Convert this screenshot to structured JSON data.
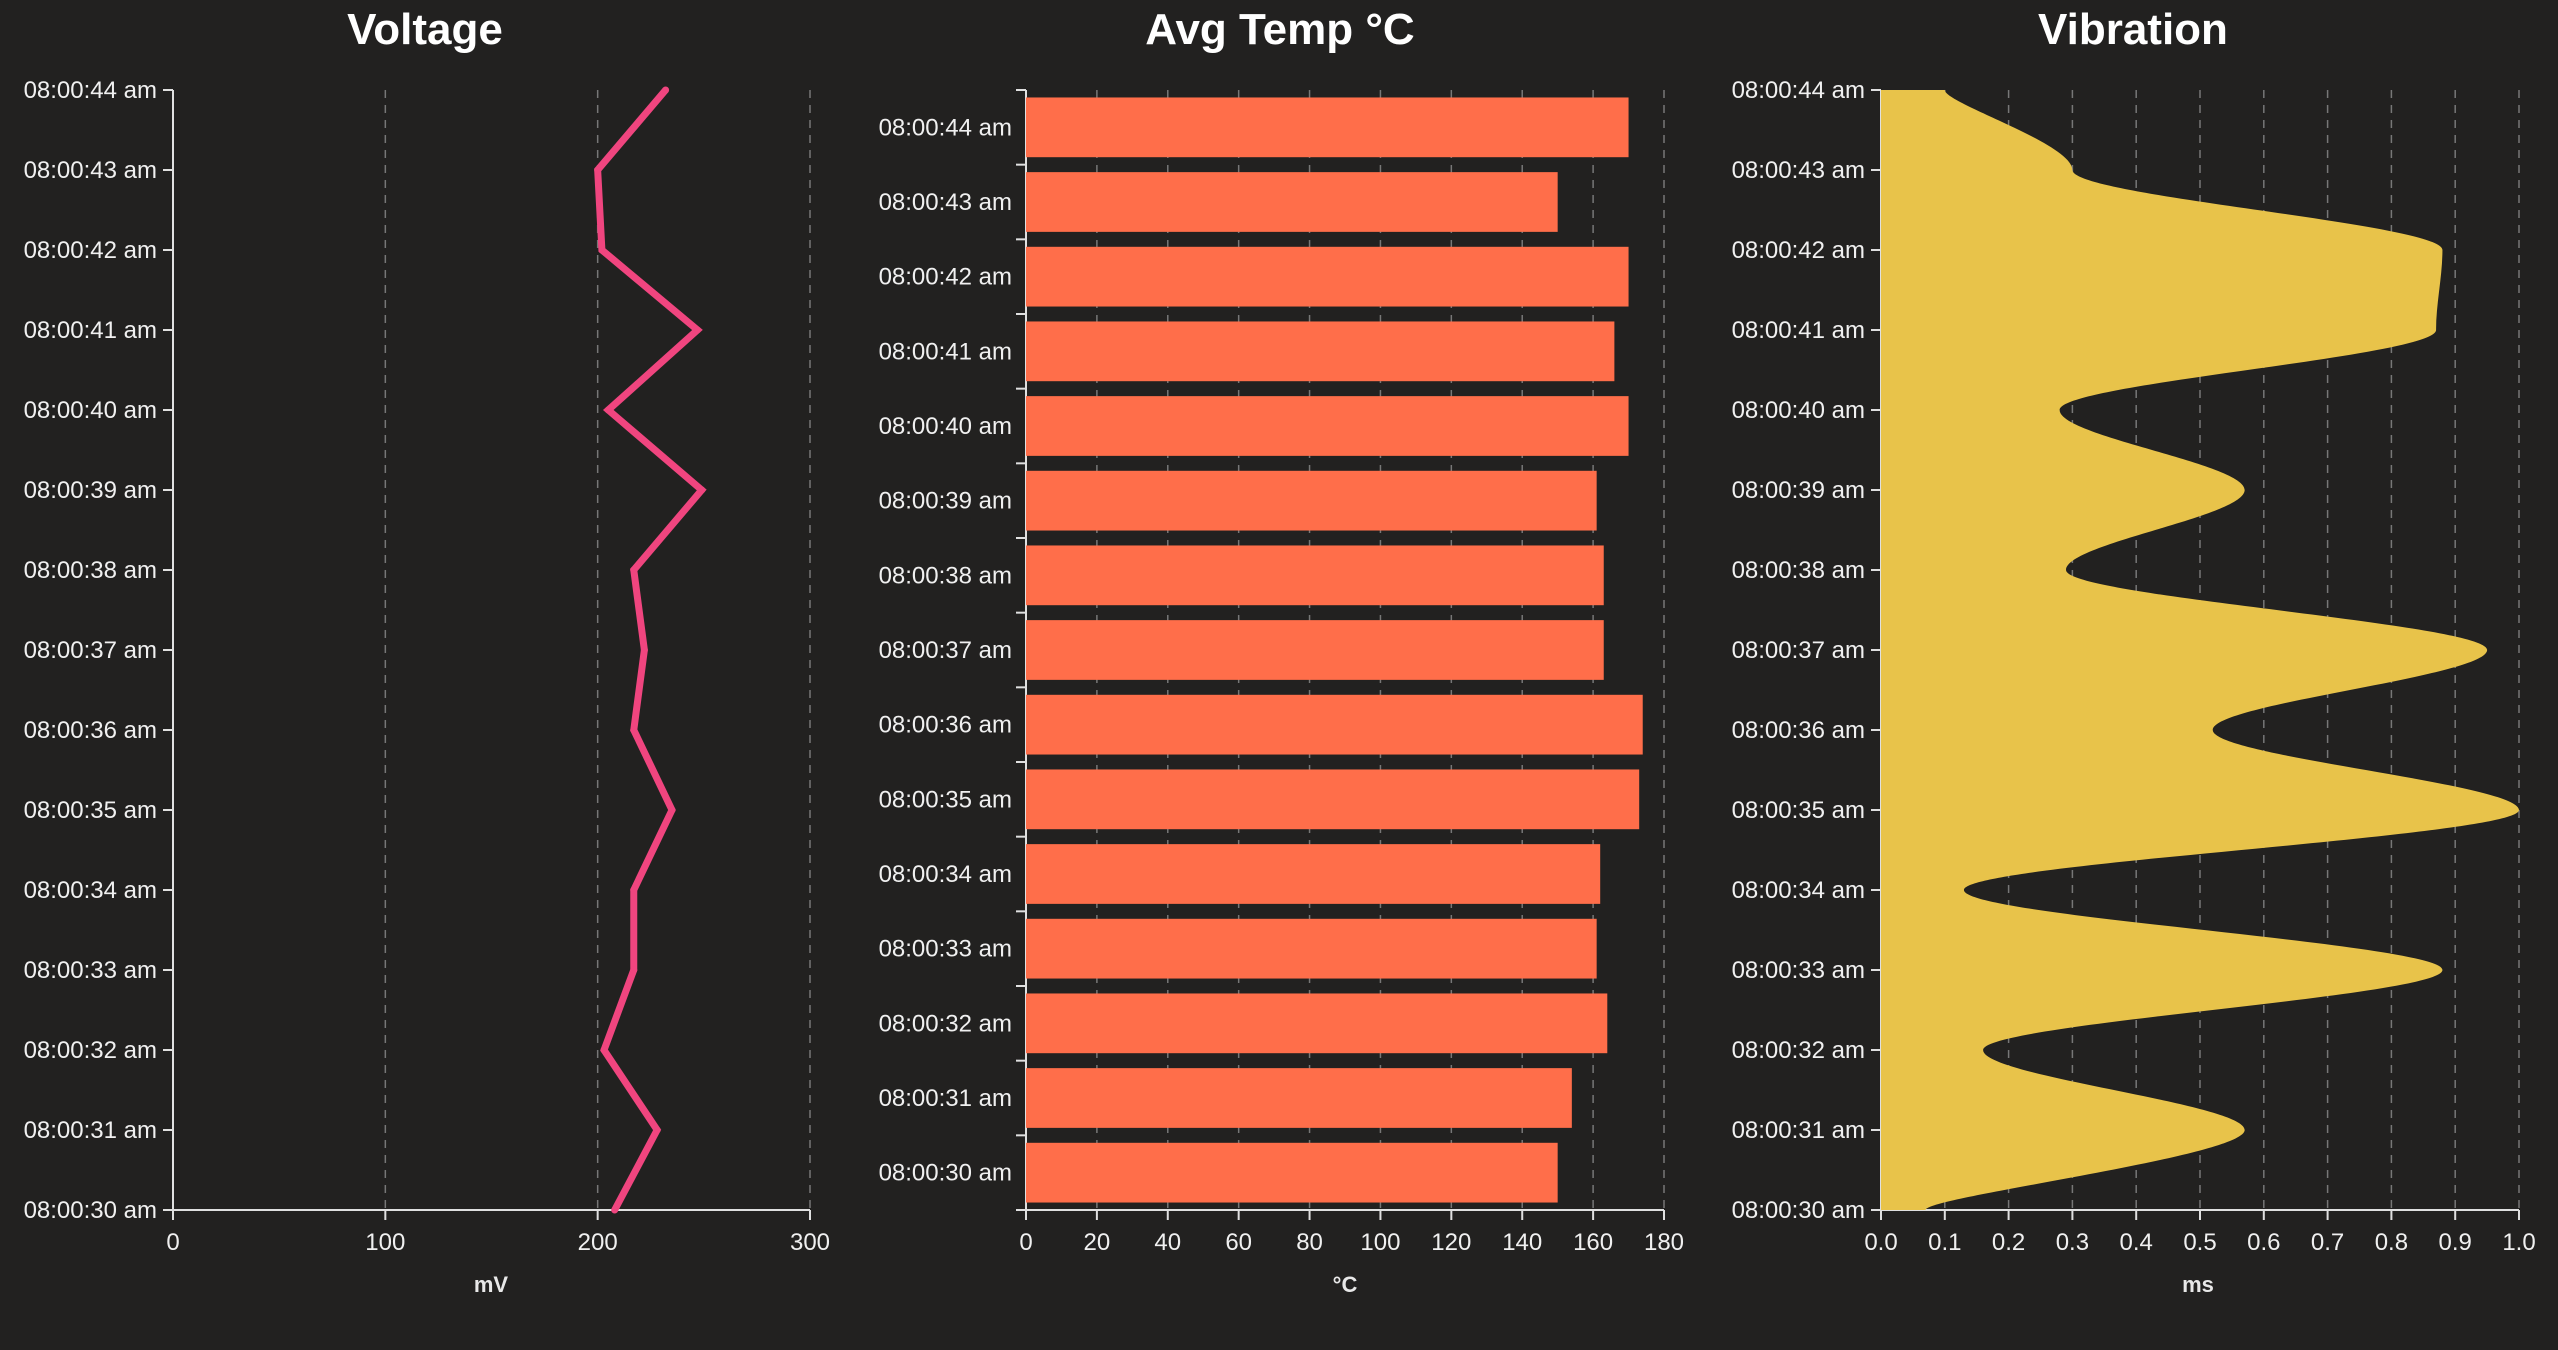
{
  "chart_data": [
    {
      "type": "line",
      "title": "Voltage",
      "xlabel": "mV",
      "ylabel": "",
      "xlim": [
        0,
        300
      ],
      "x_ticks": [
        "0",
        "100",
        "200",
        "300"
      ],
      "grid": "vertical-dashed",
      "times": [
        "08:00:30 am",
        "08:00:31 am",
        "08:00:32 am",
        "08:00:33 am",
        "08:00:34 am",
        "08:00:35 am",
        "08:00:36 am",
        "08:00:37 am",
        "08:00:38 am",
        "08:00:39 am",
        "08:00:40 am",
        "08:00:41 am",
        "08:00:42 am",
        "08:00:43 am",
        "08:00:44 am"
      ],
      "values": [
        208,
        228,
        203,
        217,
        217,
        235,
        217,
        222,
        217,
        249,
        205,
        247,
        202,
        200,
        232
      ],
      "color": "#f0457f"
    },
    {
      "type": "bar",
      "title": "Avg Temp °C",
      "xlabel": "°C",
      "ylabel": "",
      "xlim": [
        0,
        180
      ],
      "x_ticks": [
        "0",
        "20",
        "40",
        "60",
        "80",
        "100",
        "120",
        "140",
        "160",
        "180"
      ],
      "grid": "vertical-dashed",
      "categories": [
        "08:00:44 am",
        "08:00:43 am",
        "08:00:42 am",
        "08:00:41 am",
        "08:00:40 am",
        "08:00:39 am",
        "08:00:38 am",
        "08:00:37 am",
        "08:00:36 am",
        "08:00:35 am",
        "08:00:34 am",
        "08:00:33 am",
        "08:00:32 am",
        "08:00:31 am",
        "08:00:30 am"
      ],
      "values": [
        170,
        150,
        170,
        166,
        170,
        161,
        163,
        163,
        174,
        173,
        162,
        161,
        164,
        154,
        150
      ],
      "color": "#ff6e4a"
    },
    {
      "type": "area",
      "title": "Vibration",
      "xlabel": "ms",
      "ylabel": "",
      "xlim": [
        0,
        1.0
      ],
      "x_ticks": [
        "0.0",
        "0.1",
        "0.2",
        "0.3",
        "0.4",
        "0.5",
        "0.6",
        "0.7",
        "0.8",
        "0.9",
        "1.0"
      ],
      "grid": "vertical-dashed",
      "times": [
        "08:00:30 am",
        "08:00:31 am",
        "08:00:32 am",
        "08:00:33 am",
        "08:00:34 am",
        "08:00:35 am",
        "08:00:36 am",
        "08:00:37 am",
        "08:00:38 am",
        "08:00:39 am",
        "08:00:40 am",
        "08:00:41 am",
        "08:00:42 am",
        "08:00:43 am",
        "08:00:44 am"
      ],
      "values": [
        0.07,
        0.57,
        0.16,
        0.88,
        0.13,
        1.0,
        0.52,
        0.95,
        0.29,
        0.57,
        0.28,
        0.87,
        0.88,
        0.3,
        0.1
      ],
      "color": "#e8c34a"
    }
  ]
}
